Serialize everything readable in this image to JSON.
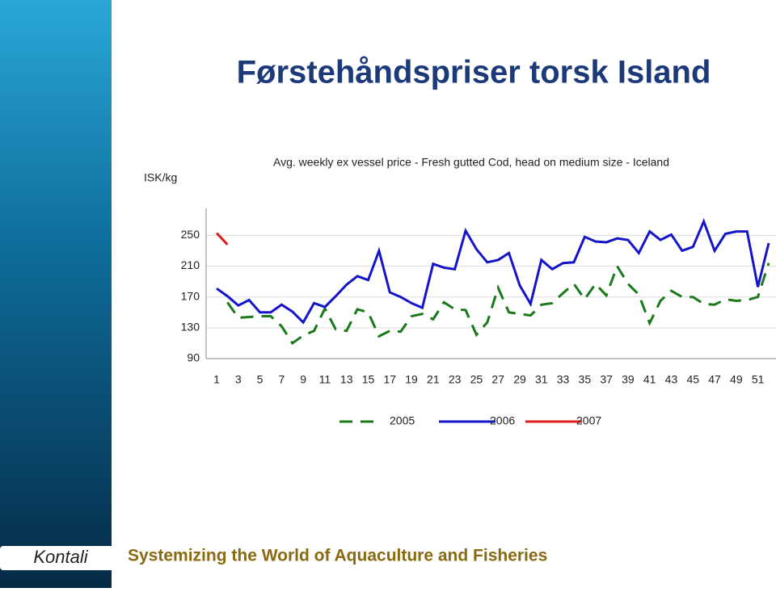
{
  "chart_data": {
    "type": "line",
    "title": "Førstehåndspriser torsk Island",
    "subtitle": "Avg. weekly ex vessel price - Fresh gutted Cod, head on medium size - Iceland",
    "y_label": "ISK/kg",
    "x": [
      1,
      2,
      3,
      4,
      5,
      6,
      7,
      8,
      9,
      10,
      11,
      12,
      13,
      14,
      15,
      16,
      17,
      18,
      19,
      20,
      21,
      22,
      23,
      24,
      25,
      26,
      27,
      28,
      29,
      30,
      31,
      32,
      33,
      34,
      35,
      36,
      37,
      38,
      39,
      40,
      41,
      42,
      43,
      44,
      45,
      46,
      47,
      48,
      49,
      50,
      51,
      52
    ],
    "xlim": [
      1,
      52
    ],
    "xticks": [
      1,
      3,
      5,
      7,
      9,
      11,
      13,
      15,
      17,
      19,
      21,
      23,
      25,
      27,
      29,
      31,
      33,
      35,
      37,
      39,
      41,
      43,
      45,
      47,
      49,
      51
    ],
    "ylim": [
      90,
      285
    ],
    "yticks": [
      90,
      130,
      170,
      210,
      250
    ],
    "grid": true,
    "series": [
      {
        "name": "2005",
        "color": "#1a7a1a",
        "dash": true,
        "values": [
          null,
          163,
          143,
          144,
          145,
          145,
          132,
          110,
          120,
          126,
          155,
          128,
          126,
          154,
          150,
          119,
          126,
          125,
          145,
          148,
          141,
          163,
          154,
          153,
          121,
          137,
          182,
          150,
          148,
          146,
          160,
          162,
          175,
          187,
          167,
          187,
          172,
          210,
          187,
          173,
          136,
          165,
          178,
          170,
          170,
          161,
          160,
          167,
          165,
          166,
          170,
          214
        ]
      },
      {
        "name": "2006",
        "color": "#1414c8",
        "dash": false,
        "values": [
          181,
          171,
          159,
          166,
          150,
          150,
          160,
          151,
          137,
          162,
          157,
          171,
          186,
          197,
          192,
          230,
          176,
          170,
          162,
          156,
          213,
          208,
          206,
          256,
          232,
          215,
          218,
          227,
          185,
          161,
          218,
          206,
          214,
          215,
          248,
          242,
          241,
          246,
          244,
          227,
          255,
          244,
          251,
          230,
          235,
          268,
          230,
          252,
          255,
          255,
          183,
          240
        ]
      },
      {
        "name": "2007",
        "color": "#dd1c1c",
        "dash": false,
        "values": [
          253,
          238,
          null,
          null,
          null,
          null,
          null,
          null,
          null,
          null,
          null,
          null,
          null,
          null,
          null,
          null,
          null,
          null,
          null,
          null,
          null,
          null,
          null,
          null,
          null,
          null,
          null,
          null,
          null,
          null,
          null,
          null,
          null,
          null,
          null,
          null,
          null,
          null,
          null,
          null,
          null,
          null,
          null,
          null,
          null,
          null,
          null,
          null,
          null,
          null,
          null,
          null
        ]
      }
    ]
  },
  "footer": "Systemizing the World of Aquaculture and Fisheries",
  "logo": "Kontali"
}
